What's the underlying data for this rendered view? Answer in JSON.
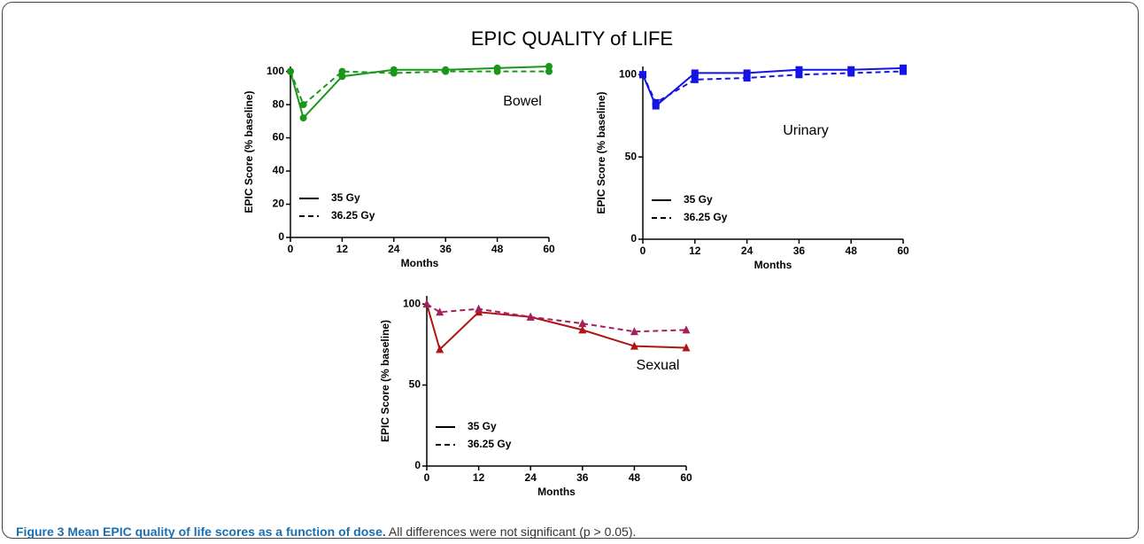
{
  "figure": {
    "title": "EPIC QUALITY of LIFE",
    "caption_label": "Figure 3 Mean EPIC quality of life scores as a function of dose.",
    "caption_text": "All differences were not significant (p > 0.05)."
  },
  "chart_data": [
    {
      "type": "line",
      "annotation": "Bowel",
      "x_label": "Months",
      "y_label": "EPIC Score (% baseline)",
      "x": [
        0,
        3,
        12,
        24,
        36,
        48,
        60
      ],
      "xlim": [
        0,
        60
      ],
      "xticks": [
        0,
        12,
        24,
        36,
        48,
        60
      ],
      "ylim": [
        0,
        103
      ],
      "yticks": [
        0,
        20,
        40,
        60,
        80,
        100
      ],
      "marker": "circle",
      "series": [
        {
          "name": "35 Gy",
          "color": "#1a961a",
          "linestyle": "solid",
          "values": [
            100,
            72,
            97,
            101,
            101,
            102,
            103
          ]
        },
        {
          "name": "36.25 Gy",
          "color": "#1a961a",
          "linestyle": "dashed",
          "values": [
            100,
            80,
            100,
            99,
            100,
            100,
            100
          ]
        }
      ]
    },
    {
      "type": "line",
      "annotation": "Urinary",
      "x_label": "Months",
      "y_label": "EPIC Score (% baseline)",
      "x": [
        0,
        3,
        12,
        24,
        36,
        48,
        60
      ],
      "xlim": [
        0,
        60
      ],
      "xticks": [
        0,
        12,
        24,
        36,
        48,
        60
      ],
      "ylim": [
        0,
        105
      ],
      "yticks": [
        0,
        50,
        100
      ],
      "marker": "square",
      "series": [
        {
          "name": "35 Gy",
          "color": "#1414e6",
          "linestyle": "solid",
          "values": [
            100,
            81,
            101,
            101,
            103,
            103,
            104
          ]
        },
        {
          "name": "36.25 Gy",
          "color": "#1414e6",
          "linestyle": "dashed",
          "values": [
            100,
            83,
            97,
            98,
            100,
            101,
            102
          ]
        }
      ]
    },
    {
      "type": "line",
      "annotation": "Sexual",
      "x_label": "Months",
      "y_label": "EPIC Score (% baseline)",
      "x": [
        0,
        3,
        12,
        24,
        36,
        48,
        60
      ],
      "xlim": [
        0,
        60
      ],
      "xticks": [
        0,
        12,
        24,
        36,
        48,
        60
      ],
      "ylim": [
        0,
        105
      ],
      "yticks": [
        0,
        50,
        100
      ],
      "marker": "triangle",
      "series": [
        {
          "name": "35 Gy",
          "color": "#b01414",
          "linestyle": "solid",
          "values": [
            100,
            72,
            95,
            92,
            84,
            74,
            73
          ]
        },
        {
          "name": "36.25 Gy",
          "color": "#a3205e",
          "linestyle": "dashed",
          "values": [
            100,
            95,
            97,
            92,
            88,
            83,
            84
          ]
        }
      ]
    }
  ]
}
